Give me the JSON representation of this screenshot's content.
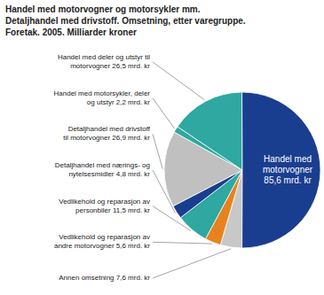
{
  "chart_data": {
    "type": "pie",
    "title": "Handel med motorvogner og motorsykler mm.\nDetaljhandel med drivstoff. Omsetning, etter varegruppe.\nForetak. 2005. Milliarder kroner",
    "categories": [
      "Annen omsetning 7,6 mrd. kr",
      "Vedlikehold og reparasjon av\nandre motorvogner 5,6 mrd. kr",
      "Vedlikehold og reparasjon av\npersonbiler 11,5 mrd. kr",
      "Detaljhandel med nærings- og\nnytelsesmidler 4,8 mrd. kr",
      "Detaljhandel med drivstoff\ntil motorvogner 26,9 mrd. kr",
      "Handel med motorsykler, deler\nog utstyr 2,2 mrd. kr",
      "Handel med deler og utstyr til\nmotorvogner 26,5 mrd. kr",
      "Handel med\nmotorvogner\n85,6 mrd. kr"
    ],
    "values": [
      7.6,
      5.6,
      11.5,
      4.8,
      26.9,
      2.2,
      26.5,
      85.6
    ],
    "colors": [
      "#c8c8c8",
      "#e8821e",
      "#2ea8a0",
      "#1a3e8f",
      "#c0c0c0",
      "#2ea8a0",
      "#2ea8a0",
      "#1a3e8f"
    ]
  }
}
